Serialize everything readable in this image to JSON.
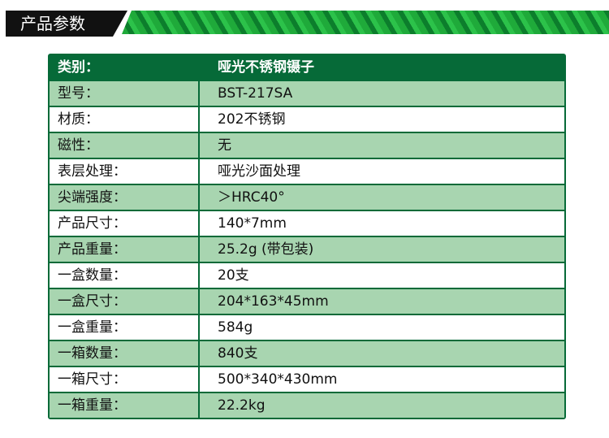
{
  "banner": {
    "title": "产品参数"
  },
  "table": {
    "header": {
      "label": "类别：",
      "value": "哑光不锈钢镊子"
    },
    "rows": [
      {
        "label": "型号：",
        "value": "BST-217SA"
      },
      {
        "label": "材质：",
        "value": "202不锈钢"
      },
      {
        "label": "磁性：",
        "value": "无"
      },
      {
        "label": "表层处理：",
        "value": "哑光沙面处理"
      },
      {
        "label": "尖端强度：",
        "value": "＞HRC40°"
      },
      {
        "label": "产品尺寸：",
        "value": "140*7mm"
      },
      {
        "label": "产品重量：",
        "value": "25.2g (带包装)"
      },
      {
        "label": "一盒数量：",
        "value": "20支"
      },
      {
        "label": "一盒尺寸：",
        "value": "204*163*45mm"
      },
      {
        "label": "一盒重量：",
        "value": "584g"
      },
      {
        "label": "一箱数量：",
        "value": "840支"
      },
      {
        "label": "一箱尺寸：",
        "value": "500*340*430mm"
      },
      {
        "label": "一箱重量：",
        "value": "22.2kg"
      }
    ]
  },
  "colors": {
    "dark_green": "#066a38",
    "light_green": "#a8d5b0"
  }
}
